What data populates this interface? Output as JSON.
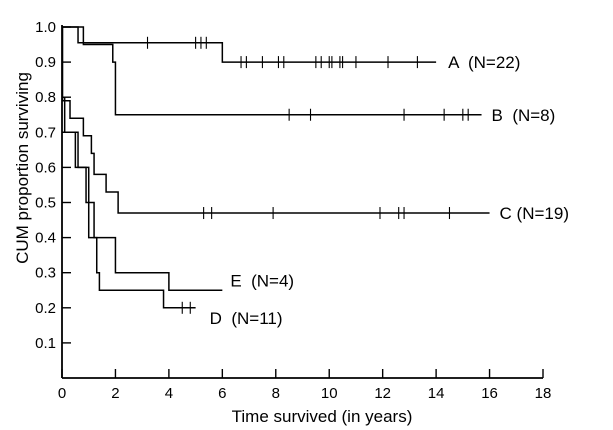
{
  "chart_data": {
    "type": "line",
    "subtype": "kaplan-meier step",
    "title": "",
    "xlabel": "Time survived (in years)",
    "ylabel": "CUM proportion surviving",
    "xlim": [
      0,
      18
    ],
    "ylim": [
      0,
      1.0
    ],
    "x_ticks": [
      0,
      2,
      4,
      6,
      8,
      10,
      12,
      14,
      16,
      18
    ],
    "x_tick_labels": [
      "0",
      "2",
      "4",
      "6",
      "8",
      "10",
      "12",
      "14",
      "16",
      "18"
    ],
    "y_ticks": [
      0.1,
      0.2,
      0.3,
      0.4,
      0.5,
      0.6,
      0.7,
      0.8,
      0.9,
      1.0
    ],
    "y_tick_labels": [
      "0.1",
      "0.2",
      "0.3",
      "0.4",
      "0.5",
      "0.6",
      "0.7",
      "0.8",
      "0.9",
      "1.0"
    ],
    "grid": false,
    "legend": "none",
    "series": [
      {
        "name": "A (N=22)",
        "steps": [
          [
            0,
            1.0
          ],
          [
            0.6,
            0.955
          ],
          [
            6.0,
            0.9
          ],
          [
            14.0,
            0.9
          ]
        ],
        "censored": [
          3.2,
          5.0,
          5.2,
          5.4,
          6.7,
          6.9,
          7.5,
          8.1,
          8.3,
          9.5,
          9.7,
          10.0,
          10.1,
          10.4,
          10.5,
          11.0,
          12.2,
          13.3
        ]
      },
      {
        "name": "B (N=8)",
        "steps": [
          [
            0,
            1.0
          ],
          [
            0.8,
            0.95
          ],
          [
            1.8,
            0.95
          ],
          [
            1.9,
            0.9
          ],
          [
            2.0,
            0.75
          ],
          [
            15.7,
            0.75
          ]
        ],
        "censored": [
          8.5,
          9.3,
          12.8,
          14.3,
          15.0,
          15.2
        ]
      },
      {
        "name": "C (N=19)",
        "steps": [
          [
            0,
            1.0
          ],
          [
            0.02,
            0.79
          ],
          [
            0.3,
            0.74
          ],
          [
            0.8,
            0.69
          ],
          [
            1.1,
            0.64
          ],
          [
            1.2,
            0.58
          ],
          [
            1.6,
            0.58
          ],
          [
            1.65,
            0.53
          ],
          [
            2.0,
            0.53
          ],
          [
            2.1,
            0.47
          ],
          [
            2.2,
            0.47
          ],
          [
            16.0,
            0.47
          ]
        ],
        "censored": [
          5.3,
          5.6,
          7.9,
          11.9,
          12.6,
          12.8,
          14.5
        ]
      },
      {
        "name": "D (N=11)",
        "steps": [
          [
            0,
            0.8
          ],
          [
            0.1,
            0.7
          ],
          [
            0.5,
            0.6
          ],
          [
            0.9,
            0.5
          ],
          [
            1.0,
            0.4
          ],
          [
            1.3,
            0.3
          ],
          [
            1.4,
            0.25
          ],
          [
            3.8,
            0.2
          ],
          [
            5.0,
            0.2
          ]
        ],
        "censored": [
          4.5,
          4.8
        ]
      },
      {
        "name": "E (N=4)",
        "steps": [
          [
            0,
            0.7
          ],
          [
            0.6,
            0.6
          ],
          [
            1.0,
            0.5
          ],
          [
            1.2,
            0.4
          ],
          [
            2.0,
            0.3
          ],
          [
            4.0,
            0.25
          ],
          [
            6.0,
            0.25
          ]
        ],
        "censored": []
      }
    ],
    "annotations": [
      {
        "text": "A  (N=22)",
        "series": "A (N=22)"
      },
      {
        "text": "B  (N=8)",
        "series": "B (N=8)"
      },
      {
        "text": "C (N=19)",
        "series": "C (N=19)"
      },
      {
        "text": "E  (N=4)",
        "series": "E (N=4)"
      },
      {
        "text": "D  (N=11)",
        "series": "D (N=11)"
      }
    ]
  }
}
